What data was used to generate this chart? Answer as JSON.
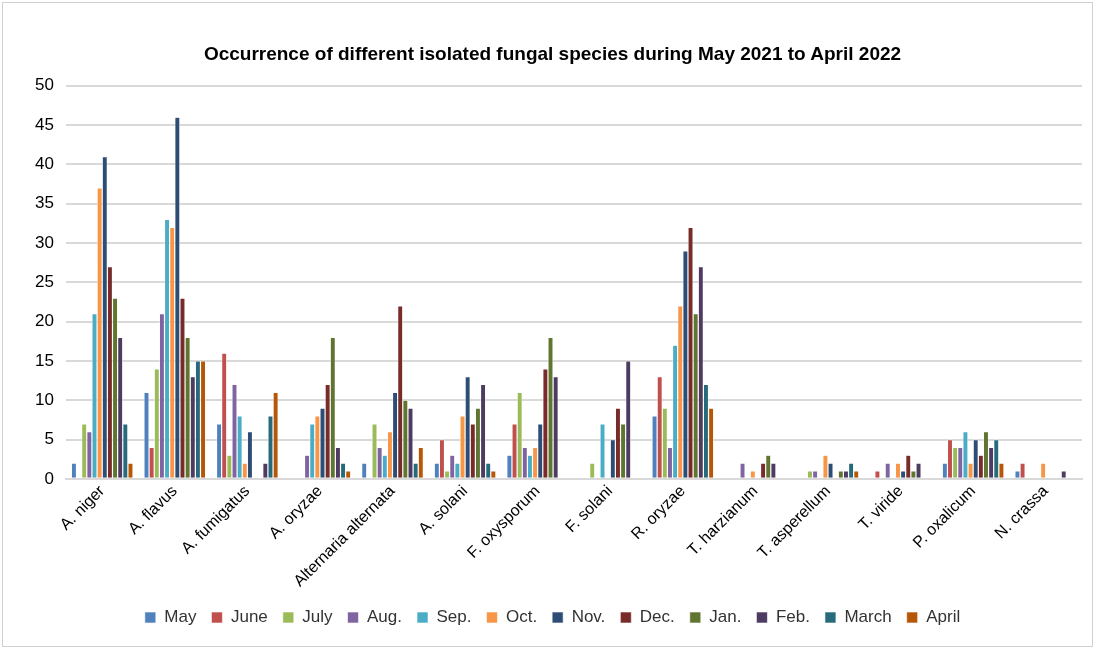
{
  "chart_data": {
    "type": "bar",
    "title": "Occurrence of different isolated fungal species during May 2021 to April 2022",
    "categories": [
      "A. niger",
      "A. flavus",
      "A. fumigatus",
      "A. oryzae",
      "Alternaria alternata",
      "A. solani",
      "F. oxysporum",
      "F. solani",
      "R. oryzae",
      "T. harzianum",
      "T. asperellum",
      "T. viride",
      "P. oxalicum",
      "N. crassa"
    ],
    "series": [
      {
        "name": "May",
        "color": "#4f81bd",
        "values": [
          2,
          11,
          7,
          0,
          2,
          2,
          3,
          0,
          8,
          0,
          0,
          0,
          2,
          1
        ]
      },
      {
        "name": "June",
        "color": "#c0504d",
        "values": [
          0,
          4,
          16,
          0,
          0,
          5,
          7,
          0,
          13,
          0,
          0,
          1,
          5,
          2
        ]
      },
      {
        "name": "July",
        "color": "#9bbb59",
        "values": [
          7,
          14,
          3,
          0,
          7,
          1,
          11,
          2,
          9,
          0,
          1,
          0,
          4,
          0
        ]
      },
      {
        "name": "Aug.",
        "color": "#8064a2",
        "values": [
          6,
          21,
          12,
          3,
          4,
          3,
          4,
          0,
          4,
          2,
          1,
          2,
          4,
          0
        ]
      },
      {
        "name": "Sep.",
        "color": "#4bacc6",
        "values": [
          21,
          33,
          8,
          7,
          3,
          2,
          3,
          7,
          17,
          0,
          0,
          0,
          6,
          0
        ]
      },
      {
        "name": "Oct.",
        "color": "#f79646",
        "values": [
          37,
          32,
          2,
          8,
          6,
          8,
          4,
          0,
          22,
          1,
          3,
          2,
          2,
          2
        ]
      },
      {
        "name": "Nov.",
        "color": "#2c4d75",
        "values": [
          41,
          46,
          6,
          9,
          11,
          13,
          7,
          5,
          29,
          0,
          2,
          1,
          5,
          0
        ]
      },
      {
        "name": "Dec.",
        "color": "#772c2a",
        "values": [
          27,
          23,
          0,
          12,
          22,
          7,
          14,
          9,
          32,
          2,
          0,
          3,
          3,
          0
        ]
      },
      {
        "name": "Jan.",
        "color": "#5f7530",
        "values": [
          23,
          18,
          0,
          18,
          10,
          9,
          18,
          7,
          21,
          3,
          1,
          1,
          6,
          0
        ]
      },
      {
        "name": "Feb.",
        "color": "#4d3b62",
        "values": [
          18,
          13,
          2,
          4,
          9,
          12,
          13,
          15,
          27,
          2,
          1,
          2,
          4,
          1
        ]
      },
      {
        "name": "March",
        "color": "#276a7c",
        "values": [
          7,
          15,
          8,
          2,
          2,
          2,
          0,
          0,
          12,
          0,
          2,
          0,
          5,
          0
        ]
      },
      {
        "name": "April",
        "color": "#b65708",
        "values": [
          2,
          15,
          11,
          1,
          4,
          1,
          0,
          0,
          9,
          0,
          1,
          0,
          2,
          0
        ]
      }
    ],
    "ylim": [
      0,
      50
    ],
    "yticks": [
      0,
      5,
      10,
      15,
      20,
      25,
      30,
      35,
      40,
      45,
      50
    ],
    "grid": "y",
    "legend": "bottom"
  }
}
